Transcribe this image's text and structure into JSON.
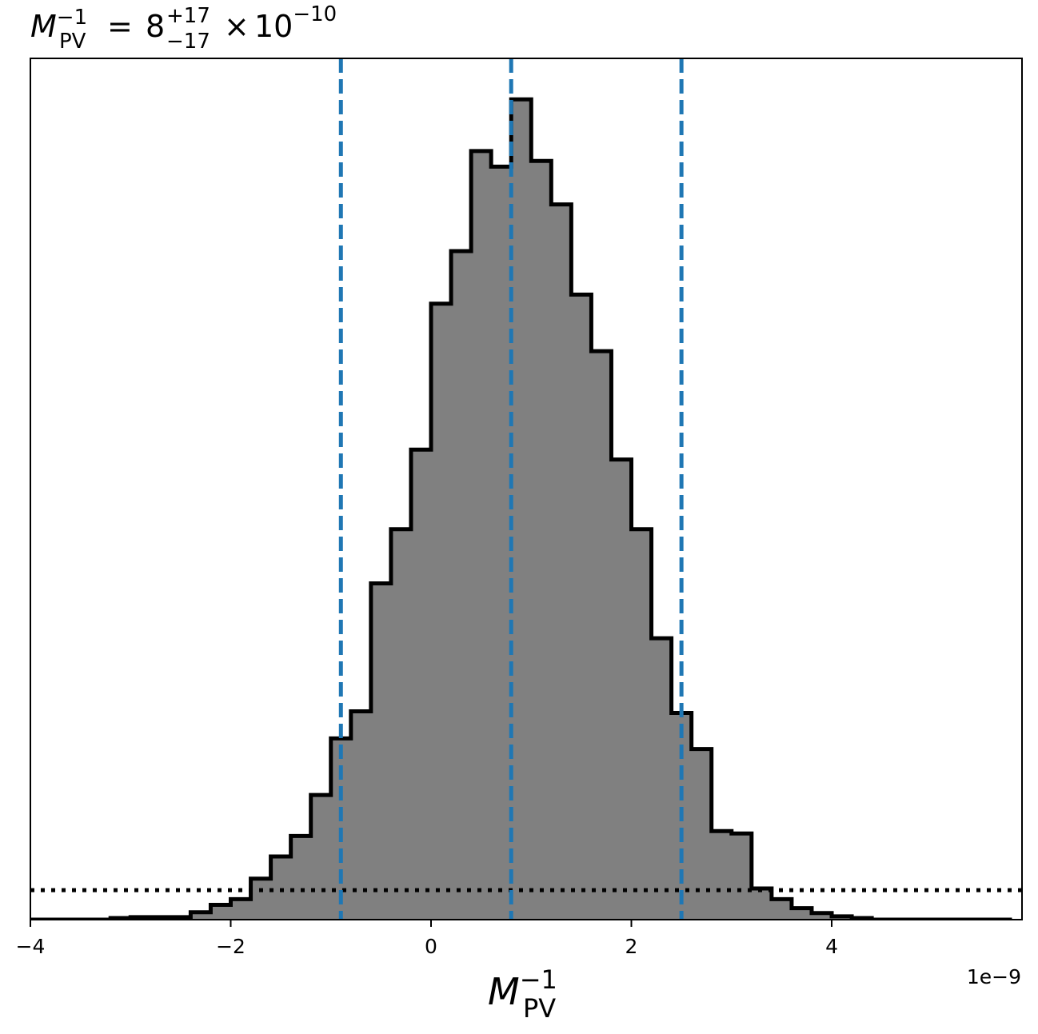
{
  "chart_data": {
    "type": "bar",
    "subtype": "step-histogram",
    "title": {
      "symbol": "M",
      "subscript": "PV",
      "superscript": "−1",
      "equals": "=",
      "mantissa": "8",
      "plus_err": "+17",
      "minus_err": "−17",
      "times": "×",
      "base": "10",
      "exponent": "−10"
    },
    "xlabel": {
      "symbol": "M",
      "subscript": "PV",
      "superscript": "−1"
    },
    "x_offset_label": "1e−9",
    "x_scale": 1e-09,
    "xlim": [
      -4.0,
      5.9
    ],
    "ylim": [
      0,
      1.05
    ],
    "grid": false,
    "legend": "none",
    "x_ticks": [
      {
        "value": -4,
        "label": "−4"
      },
      {
        "value": -2,
        "label": "−2"
      },
      {
        "value": 0,
        "label": "0"
      },
      {
        "value": 2,
        "label": "2"
      },
      {
        "value": 4,
        "label": "4"
      }
    ],
    "bin_edges": [
      -4.0,
      -3.8,
      -3.6,
      -3.4,
      -3.2,
      -3.0,
      -2.8,
      -2.6,
      -2.4,
      -2.2,
      -2.0,
      -1.8,
      -1.6,
      -1.4,
      -1.2,
      -1.0,
      -0.8,
      -0.6,
      -0.4,
      -0.2,
      0.0,
      0.2,
      0.4,
      0.6,
      0.8,
      1.0,
      1.2,
      1.4,
      1.6,
      1.8,
      2.0,
      2.2,
      2.4,
      2.6,
      2.8,
      3.0,
      3.2,
      3.4,
      3.6,
      3.8,
      4.0,
      4.2,
      4.4,
      4.6,
      4.8,
      5.0,
      5.2,
      5.4,
      5.6,
      5.8
    ],
    "counts": [
      0.0,
      0.0,
      0.0,
      0.0,
      0.002,
      0.003,
      0.003,
      0.003,
      0.009,
      0.018,
      0.025,
      0.05,
      0.077,
      0.102,
      0.152,
      0.221,
      0.254,
      0.41,
      0.476,
      0.573,
      0.751,
      0.815,
      0.937,
      0.918,
      1.0,
      0.925,
      0.872,
      0.762,
      0.693,
      0.561,
      0.476,
      0.343,
      0.252,
      0.208,
      0.108,
      0.105,
      0.038,
      0.025,
      0.014,
      0.008,
      0.004,
      0.002,
      0.0,
      0.0,
      0.0,
      0.0,
      0.0,
      0.0,
      0.0
    ],
    "fill_color": "#808080",
    "edge_color": "#000000",
    "vlines": {
      "values": [
        -0.9,
        0.8,
        2.5
      ],
      "color": "#1f77b4",
      "style": "dashed"
    },
    "hline": {
      "value": 0.036,
      "color": "#000000",
      "style": "dotted"
    }
  }
}
